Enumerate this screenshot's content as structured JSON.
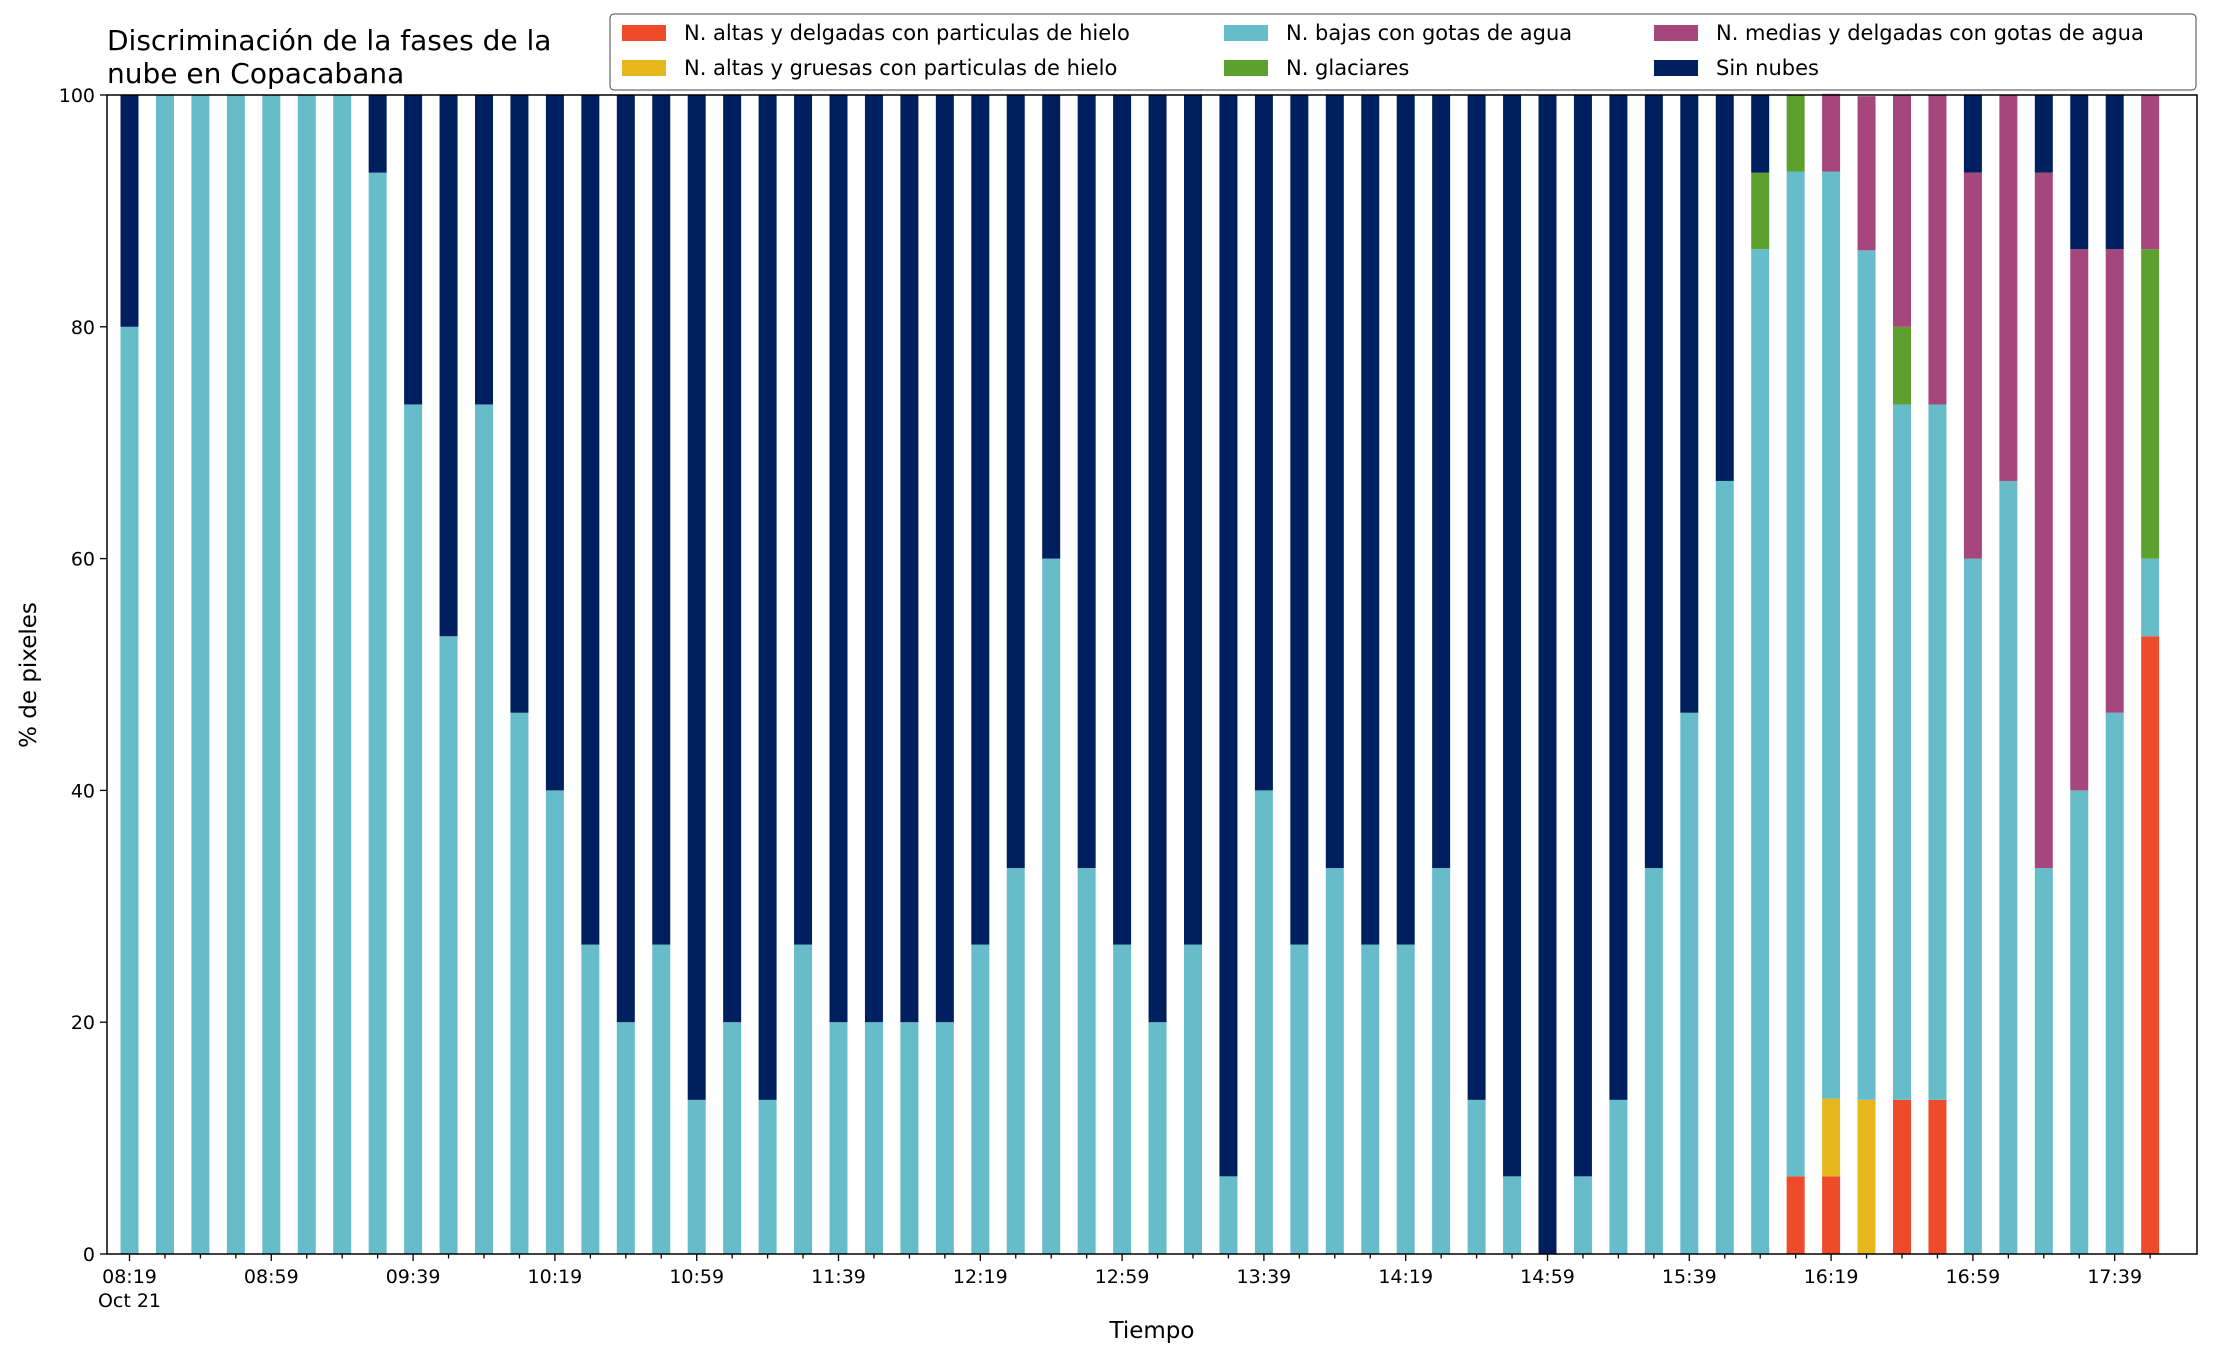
{
  "chart_data": {
    "type": "bar",
    "stacked": true,
    "title_line1": "Discriminación de la fases de la",
    "title_line2": "nube en Copacabana",
    "xlabel": "Tiempo",
    "ylabel": "% de pixeles",
    "ylim": [
      0,
      100
    ],
    "yticks": [
      0,
      20,
      40,
      60,
      80,
      100
    ],
    "grid": false,
    "legend_position": "top-right",
    "first_xtick_date": "Oct 21",
    "categories": [
      "08:19",
      "08:29",
      "08:39",
      "08:49",
      "08:59",
      "09:09",
      "09:19",
      "09:29",
      "09:39",
      "09:49",
      "09:59",
      "10:09",
      "10:19",
      "10:29",
      "10:39",
      "10:49",
      "10:59",
      "11:09",
      "11:19",
      "11:29",
      "11:39",
      "11:49",
      "11:59",
      "12:09",
      "12:19",
      "12:29",
      "12:39",
      "12:49",
      "12:59",
      "13:09",
      "13:19",
      "13:29",
      "13:39",
      "13:49",
      "13:59",
      "14:09",
      "14:19",
      "14:29",
      "14:39",
      "14:49",
      "14:59",
      "15:09",
      "15:19",
      "15:29",
      "15:39",
      "15:49",
      "15:59",
      "16:09",
      "16:19",
      "16:29",
      "16:39",
      "16:49",
      "16:59",
      "17:09",
      "17:19",
      "17:29",
      "17:39",
      "17:49"
    ],
    "labeled_ticks": [
      "08:19",
      "08:59",
      "09:39",
      "10:19",
      "10:59",
      "11:39",
      "12:19",
      "12:59",
      "13:39",
      "14:19",
      "14:59",
      "15:39",
      "16:19",
      "16:59",
      "17:39"
    ],
    "series": [
      {
        "name": "N. altas y delgadas con particulas de hielo",
        "color": "#EE4B2B",
        "values": [
          0,
          0,
          0,
          0,
          0,
          0,
          0,
          0,
          0,
          0,
          0,
          0,
          0,
          0,
          0,
          0,
          0,
          0,
          0,
          0,
          0,
          0,
          0,
          0,
          0,
          0,
          0,
          0,
          0,
          0,
          0,
          0,
          0,
          0,
          0,
          0,
          0,
          0,
          0,
          0,
          0,
          0,
          0,
          0,
          0,
          0,
          0,
          6.7,
          6.7,
          0,
          13.3,
          13.3,
          0,
          0,
          0,
          0,
          0,
          53.3
        ]
      },
      {
        "name": "N. altas y gruesas con particulas de hielo",
        "color": "#E6B81E",
        "values": [
          0,
          0,
          0,
          0,
          0,
          0,
          0,
          0,
          0,
          0,
          0,
          0,
          0,
          0,
          0,
          0,
          0,
          0,
          0,
          0,
          0,
          0,
          0,
          0,
          0,
          0,
          0,
          0,
          0,
          0,
          0,
          0,
          0,
          0,
          0,
          0,
          0,
          0,
          0,
          0,
          0,
          0,
          0,
          0,
          0,
          0,
          0,
          0,
          6.7,
          13.3,
          0,
          0,
          0,
          0,
          0,
          0,
          0,
          0
        ]
      },
      {
        "name": "N. bajas con gotas de agua",
        "color": "#66BDC9",
        "values": [
          80,
          100,
          100,
          100,
          100,
          100,
          100,
          93.3,
          73.3,
          53.3,
          73.3,
          46.7,
          40,
          26.7,
          20,
          26.7,
          13.3,
          20,
          13.3,
          26.7,
          20,
          20,
          20,
          20,
          26.7,
          33.3,
          60,
          33.3,
          26.7,
          20,
          26.7,
          6.7,
          40,
          26.7,
          33.3,
          26.7,
          26.7,
          33.3,
          13.3,
          6.7,
          0,
          6.7,
          13.3,
          33.3,
          46.7,
          66.7,
          86.7,
          86.7,
          80,
          73.3,
          60,
          60,
          60,
          66.7,
          33.3,
          40,
          46.7,
          6.7
        ]
      },
      {
        "name": "N. glaciares",
        "color": "#5DA02E",
        "values": [
          0,
          0,
          0,
          0,
          0,
          0,
          0,
          0,
          0,
          0,
          0,
          0,
          0,
          0,
          0,
          0,
          0,
          0,
          0,
          0,
          0,
          0,
          0,
          0,
          0,
          0,
          0,
          0,
          0,
          0,
          0,
          0,
          0,
          0,
          0,
          0,
          0,
          0,
          0,
          0,
          0,
          0,
          0,
          0,
          0,
          0,
          6.6,
          6.6,
          0,
          0,
          6.7,
          0,
          0,
          0,
          0,
          0,
          0,
          26.7
        ]
      },
      {
        "name": "N. medias y delgadas con gotas de agua",
        "color": "#A5467D",
        "values": [
          0,
          0,
          0,
          0,
          0,
          0,
          0,
          0,
          0,
          0,
          0,
          0,
          0,
          0,
          0,
          0,
          0,
          0,
          0,
          0,
          0,
          0,
          0,
          0,
          0,
          0,
          0,
          0,
          0,
          0,
          0,
          0,
          0,
          0,
          0,
          0,
          0,
          0,
          0,
          0,
          0,
          0,
          0,
          0,
          0,
          0,
          0,
          0,
          6.7,
          13.3,
          20,
          26.7,
          33.3,
          33.3,
          60,
          46.7,
          40,
          13.3
        ]
      },
      {
        "name": "Sin nubes",
        "color": "#001F5F",
        "values": [
          20,
          0,
          0,
          0,
          0,
          0,
          0,
          6.7,
          26.7,
          46.7,
          26.7,
          53.3,
          60,
          73.3,
          80,
          73.3,
          86.7,
          80,
          86.7,
          73.3,
          80,
          80,
          80,
          80,
          73.3,
          66.7,
          40,
          66.7,
          73.3,
          80,
          73.3,
          93.3,
          60,
          73.3,
          66.7,
          73.3,
          73.3,
          66.7,
          86.7,
          93.3,
          100,
          93.3,
          86.7,
          66.7,
          53.3,
          33.3,
          6.7,
          0,
          0,
          0,
          0,
          0,
          6.7,
          0,
          6.7,
          13.3,
          13.3,
          0
        ]
      }
    ]
  }
}
